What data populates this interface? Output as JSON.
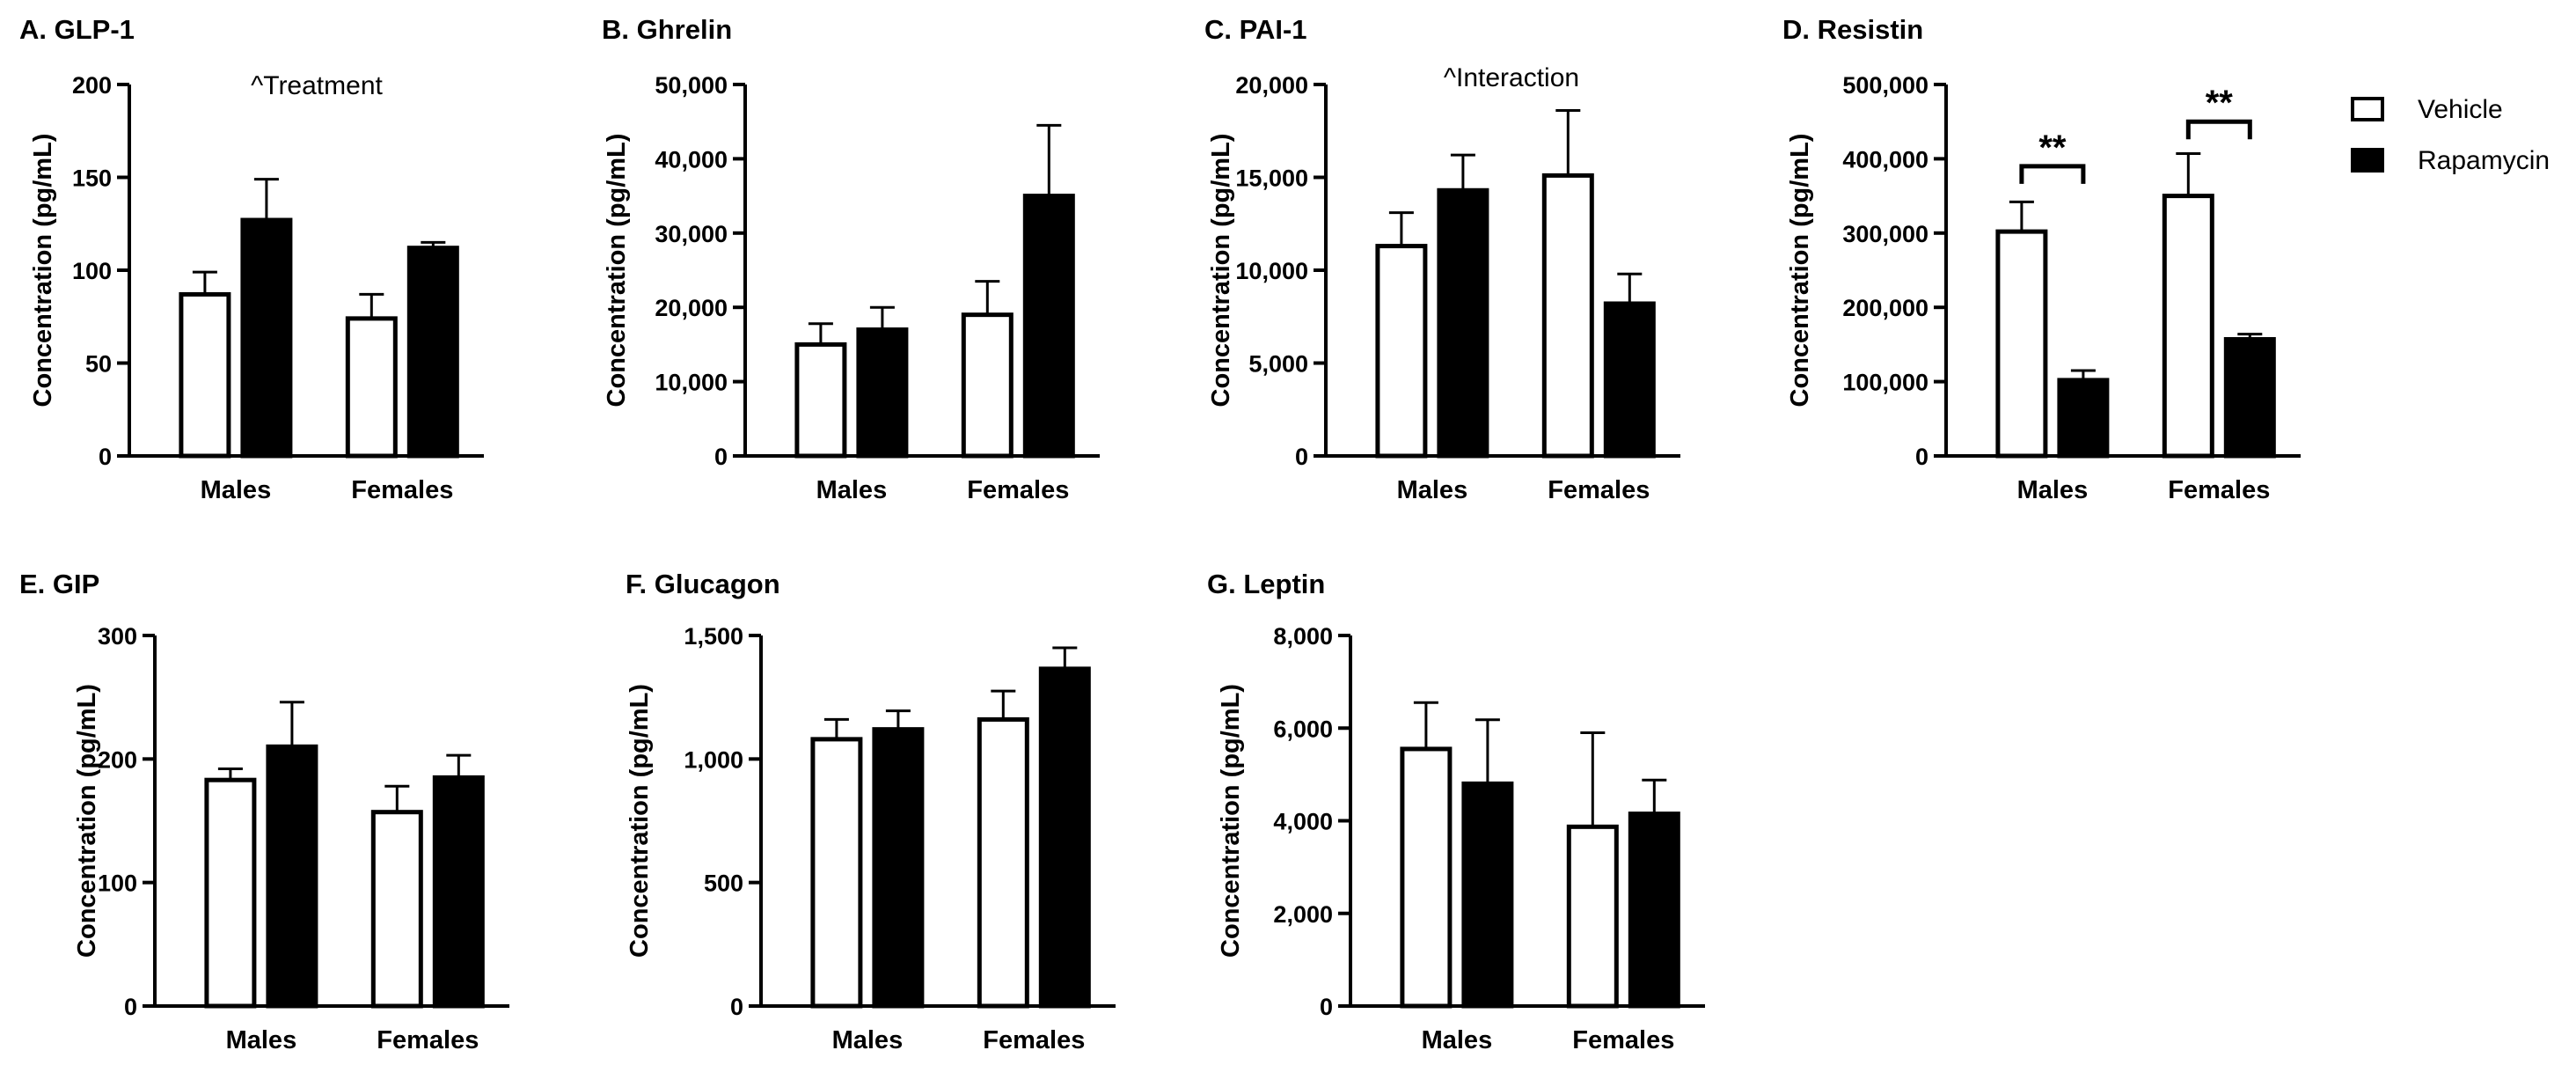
{
  "legend": {
    "placement": "top-right",
    "entries": [
      {
        "label": "Vehicle",
        "fill": "#ffffff",
        "stroke": "#000000"
      },
      {
        "label": "Rapamycin",
        "fill": "#000000",
        "stroke": "#000000"
      }
    ]
  },
  "colors": {
    "vehicle_fill": "#ffffff",
    "rapamycin_fill": "#000000",
    "axis": "#000000"
  },
  "chart_data": [
    {
      "type": "bar",
      "title": "A. GLP-1",
      "ylabel": "Concentration (pg/mL)",
      "xlabel": "",
      "categories": [
        "Males",
        "Females"
      ],
      "ylim": [
        0,
        200
      ],
      "yticks": [
        0,
        50,
        100,
        150,
        200
      ],
      "ytick_labels": [
        "0",
        "50",
        "100",
        "150",
        "200"
      ],
      "series": [
        {
          "name": "Vehicle",
          "values": [
            87,
            74
          ],
          "errors": [
            12,
            13
          ]
        },
        {
          "name": "Rapamycin",
          "values": [
            127,
            112
          ],
          "errors": [
            22,
            3
          ]
        }
      ],
      "annotation": "^Treatment",
      "significance": []
    },
    {
      "type": "bar",
      "title": "B. Ghrelin",
      "ylabel": "Concentration (pg/mL)",
      "xlabel": "",
      "categories": [
        "Males",
        "Females"
      ],
      "ylim": [
        0,
        50000
      ],
      "yticks": [
        0,
        10000,
        20000,
        30000,
        40000,
        50000
      ],
      "ytick_labels": [
        "0",
        "10,000",
        "20,000",
        "30,000",
        "40,000",
        "50,000"
      ],
      "series": [
        {
          "name": "Vehicle",
          "values": [
            15000,
            19000
          ],
          "errors": [
            2800,
            4500
          ]
        },
        {
          "name": "Rapamycin",
          "values": [
            17000,
            35000
          ],
          "errors": [
            3000,
            9500
          ]
        }
      ],
      "annotation": "",
      "significance": []
    },
    {
      "type": "bar",
      "title": "C. PAI-1",
      "ylabel": "Concentration (pg/mL)",
      "xlabel": "",
      "categories": [
        "Males",
        "Females"
      ],
      "ylim": [
        0,
        20000
      ],
      "yticks": [
        0,
        5000,
        10000,
        15000,
        20000
      ],
      "ytick_labels": [
        "0",
        "5,000",
        "10,000",
        "15,000",
        "20,000"
      ],
      "series": [
        {
          "name": "Vehicle",
          "values": [
            11300,
            15100
          ],
          "errors": [
            1800,
            3500
          ]
        },
        {
          "name": "Rapamycin",
          "values": [
            14300,
            8200
          ],
          "errors": [
            1900,
            1600
          ]
        }
      ],
      "annotation": "^Interaction",
      "significance": []
    },
    {
      "type": "bar",
      "title": "D. Resistin",
      "ylabel": "Concentration (pg/mL)",
      "xlabel": "",
      "categories": [
        "Males",
        "Females"
      ],
      "ylim": [
        0,
        500000
      ],
      "yticks": [
        0,
        100000,
        200000,
        300000,
        400000,
        500000
      ],
      "ytick_labels": [
        "0",
        "100,000",
        "200,000",
        "300,000",
        "400,000",
        "500,000"
      ],
      "series": [
        {
          "name": "Vehicle",
          "values": [
            302000,
            350000
          ],
          "errors": [
            40000,
            57000
          ]
        },
        {
          "name": "Rapamycin",
          "values": [
            102000,
            157000
          ],
          "errors": [
            13000,
            7000
          ]
        }
      ],
      "annotation": "",
      "significance": [
        {
          "category": "Males",
          "label": "**",
          "level": 390000
        },
        {
          "category": "Females",
          "label": "**",
          "level": 450000
        }
      ]
    },
    {
      "type": "bar",
      "title": "E. GIP",
      "ylabel": "Concentration (pg/mL)",
      "xlabel": "",
      "categories": [
        "Males",
        "Females"
      ],
      "ylim": [
        0,
        300
      ],
      "yticks": [
        0,
        100,
        200,
        300
      ],
      "ytick_labels": [
        "0",
        "100",
        "200",
        "300"
      ],
      "series": [
        {
          "name": "Vehicle",
          "values": [
            183,
            157
          ],
          "errors": [
            9,
            21
          ]
        },
        {
          "name": "Rapamycin",
          "values": [
            210,
            185
          ],
          "errors": [
            36,
            18
          ]
        }
      ],
      "annotation": "",
      "significance": []
    },
    {
      "type": "bar",
      "title": "F. Glucagon",
      "ylabel": "Concentration (pg/mL)",
      "xlabel": "",
      "categories": [
        "Males",
        "Females"
      ],
      "ylim": [
        0,
        1500
      ],
      "yticks": [
        0,
        500,
        1000,
        1500
      ],
      "ytick_labels": [
        "0",
        "500",
        "1,000",
        "1,500"
      ],
      "series": [
        {
          "name": "Vehicle",
          "values": [
            1080,
            1160
          ],
          "errors": [
            80,
            115
          ]
        },
        {
          "name": "Rapamycin",
          "values": [
            1120,
            1365
          ],
          "errors": [
            75,
            85
          ]
        }
      ],
      "annotation": "",
      "significance": []
    },
    {
      "type": "bar",
      "title": "G. Leptin",
      "ylabel": "Concentration (pg/mL)",
      "xlabel": "",
      "categories": [
        "Males",
        "Females"
      ],
      "ylim": [
        0,
        8000
      ],
      "yticks": [
        0,
        2000,
        4000,
        6000,
        8000
      ],
      "ytick_labels": [
        "0",
        "2,000",
        "4,000",
        "6,000",
        "8,000"
      ],
      "series": [
        {
          "name": "Vehicle",
          "values": [
            5550,
            3870
          ],
          "errors": [
            1000,
            2030
          ]
        },
        {
          "name": "Rapamycin",
          "values": [
            4800,
            4150
          ],
          "errors": [
            1380,
            730
          ]
        }
      ],
      "annotation": "",
      "significance": []
    }
  ]
}
